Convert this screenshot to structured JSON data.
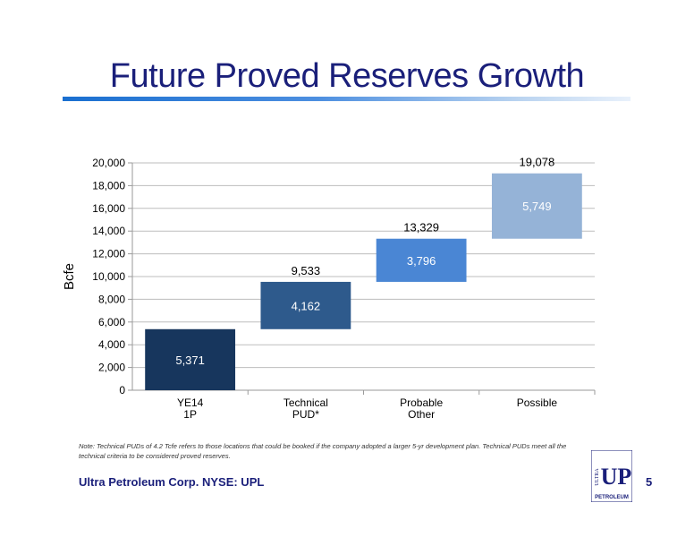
{
  "slide": {
    "title": "Future Proved Reserves Growth",
    "footnote": "Note: Technical PUDs of 4.2 Tcfe refers to those locations that could be booked if the company adopted a larger 5-yr development plan. Technical PUDs meet all the technical criteria to be considered proved reserves.",
    "company": "Ultra Petroleum Corp. NYSE: UPL",
    "page_number": "5",
    "logo": {
      "mark": "UP",
      "vertical_text": "ULTRA",
      "bottom_text": "PETROLEUM"
    }
  },
  "colors": {
    "title": "#1a1f7a",
    "accent": "#1a6fd0"
  },
  "chart_data": {
    "type": "bar",
    "subtype": "waterfall",
    "title": "",
    "xlabel": "",
    "ylabel": "Bcfe",
    "ylim": [
      0,
      20000
    ],
    "yticks": [
      "0",
      "2,000",
      "4,000",
      "6,000",
      "8,000",
      "10,000",
      "12,000",
      "14,000",
      "16,000",
      "18,000",
      "20,000"
    ],
    "ytick_values": [
      0,
      2000,
      4000,
      6000,
      8000,
      10000,
      12000,
      14000,
      16000,
      18000,
      20000
    ],
    "grid": true,
    "legend": "none",
    "categories": [
      [
        "YE14",
        "1P"
      ],
      [
        "Technical",
        "PUD*"
      ],
      [
        "Probable",
        "Other"
      ],
      [
        "Possible"
      ]
    ],
    "bars": [
      {
        "base": 0,
        "value": 5371,
        "label": "5,371",
        "total_label": "",
        "color": "#17365d"
      },
      {
        "base": 5371,
        "value": 4162,
        "label": "4,162",
        "total_label": "9,533",
        "color": "#2e5a8c"
      },
      {
        "base": 9533,
        "value": 3796,
        "label": "3,796",
        "total_label": "13,329",
        "color": "#4a86d4"
      },
      {
        "base": 13329,
        "value": 5749,
        "label": "5,749",
        "total_label": "19,078",
        "color": "#95b3d7"
      }
    ]
  }
}
